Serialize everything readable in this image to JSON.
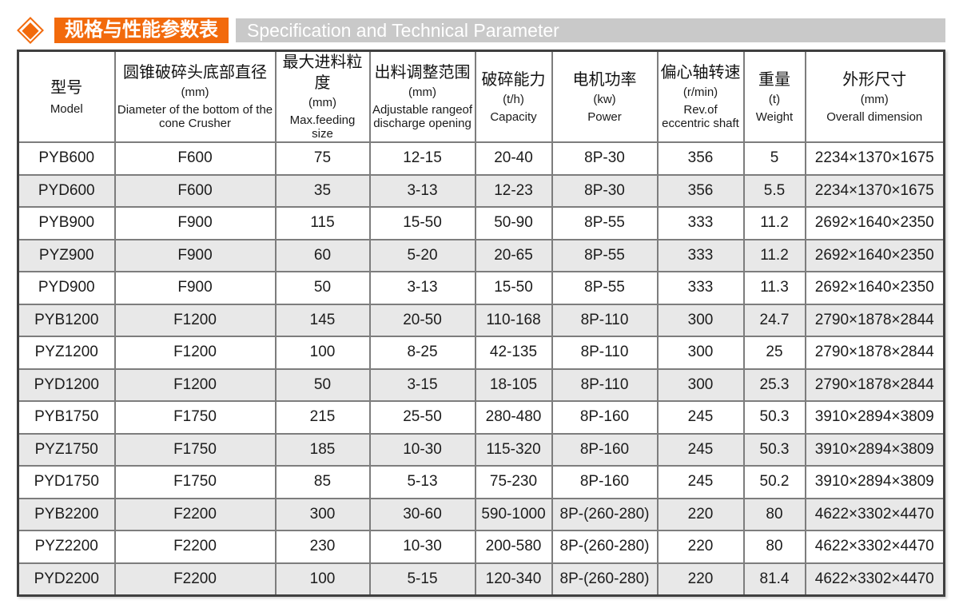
{
  "header": {
    "icon": "diamond-icon",
    "title_zh": "规格与性能参数表",
    "title_en": "Specification and Technical Parameter"
  },
  "colors": {
    "accent_orange": "#f26a0c",
    "subtitle_gray": "#c9c9c9",
    "row_alt_gray": "#e8e8e8",
    "grid_line": "#7d7d7d",
    "outer_border": "#3f3f3f"
  },
  "table": {
    "columns": [
      {
        "zh": "型号",
        "unit": "",
        "en": "Model"
      },
      {
        "zh": "圆锥破碎头底部直径",
        "unit": "(mm)",
        "en": "Diameter of the bottom of the cone Crusher"
      },
      {
        "zh": "最大进料粒度",
        "unit": "(mm)",
        "en": "Max.feeding size"
      },
      {
        "zh": "出料调整范围",
        "unit": "(mm)",
        "en": "Adjustable rangeof discharge opening"
      },
      {
        "zh": "破碎能力",
        "unit": "(t/h)",
        "en": "Capacity"
      },
      {
        "zh": "电机功率",
        "unit": "(kw)",
        "en": "Power"
      },
      {
        "zh": "偏心轴转速",
        "unit": "(r/min)",
        "en": "Rev.of eccentric shaft"
      },
      {
        "zh": "重量",
        "unit": "(t)",
        "en": "Weight"
      },
      {
        "zh": "外形尺寸",
        "unit": "(mm)",
        "en": "Overall dimension"
      }
    ],
    "rows": [
      [
        "PYB600",
        "F600",
        "75",
        "12-15",
        "20-40",
        "8P-30",
        "356",
        "5",
        "2234×1370×1675"
      ],
      [
        "PYD600",
        "F600",
        "35",
        "3-13",
        "12-23",
        "8P-30",
        "356",
        "5.5",
        "2234×1370×1675"
      ],
      [
        "PYB900",
        "F900",
        "115",
        "15-50",
        "50-90",
        "8P-55",
        "333",
        "11.2",
        "2692×1640×2350"
      ],
      [
        "PYZ900",
        "F900",
        "60",
        "5-20",
        "20-65",
        "8P-55",
        "333",
        "11.2",
        "2692×1640×2350"
      ],
      [
        "PYD900",
        "F900",
        "50",
        "3-13",
        "15-50",
        "8P-55",
        "333",
        "11.3",
        "2692×1640×2350"
      ],
      [
        "PYB1200",
        "F1200",
        "145",
        "20-50",
        "110-168",
        "8P-110",
        "300",
        "24.7",
        "2790×1878×2844"
      ],
      [
        "PYZ1200",
        "F1200",
        "100",
        "8-25",
        "42-135",
        "8P-110",
        "300",
        "25",
        "2790×1878×2844"
      ],
      [
        "PYD1200",
        "F1200",
        "50",
        "3-15",
        "18-105",
        "8P-110",
        "300",
        "25.3",
        "2790×1878×2844"
      ],
      [
        "PYB1750",
        "F1750",
        "215",
        "25-50",
        "280-480",
        "8P-160",
        "245",
        "50.3",
        "3910×2894×3809"
      ],
      [
        "PYZ1750",
        "F1750",
        "185",
        "10-30",
        "115-320",
        "8P-160",
        "245",
        "50.3",
        "3910×2894×3809"
      ],
      [
        "PYD1750",
        "F1750",
        "85",
        "5-13",
        "75-230",
        "8P-160",
        "245",
        "50.2",
        "3910×2894×3809"
      ],
      [
        "PYB2200",
        "F2200",
        "300",
        "30-60",
        "590-1000",
        "8P-(260-280)",
        "220",
        "80",
        "4622×3302×4470"
      ],
      [
        "PYZ2200",
        "F2200",
        "230",
        "10-30",
        "200-580",
        "8P-(260-280)",
        "220",
        "80",
        "4622×3302×4470"
      ],
      [
        "PYD2200",
        "F2200",
        "100",
        "5-15",
        "120-340",
        "8P-(260-280)",
        "220",
        "81.4",
        "4622×3302×4470"
      ]
    ]
  }
}
